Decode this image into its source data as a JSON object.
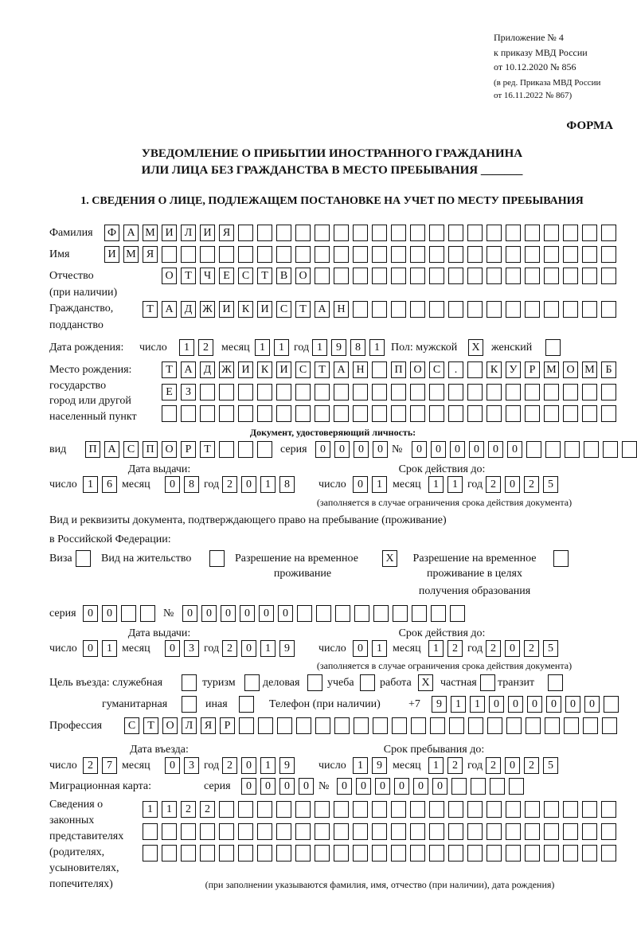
{
  "header": {
    "appendix": "Приложение № 4",
    "order": "к приказу МВД России",
    "order_date": "от 10.12.2020 № 856",
    "revision1": "(в ред. Приказа МВД России",
    "revision2": "от 16.11.2022 № 867)",
    "form_label": "ФОРМА",
    "title1": "УВЕДОМЛЕНИЕ О ПРИБЫТИИ ИНОСТРАННОГО ГРАЖДАНИНА",
    "title2": "ИЛИ ЛИЦА БЕЗ ГРАЖДАНСТВА В МЕСТО ПРЕБЫВАНИЯ _______",
    "section1": "1. СВЕДЕНИЯ О ЛИЦЕ, ПОДЛЕЖАЩЕМ ПОСТАНОВКЕ НА УЧЕТ ПО МЕСТУ ПРЕБЫВАНИЯ"
  },
  "labels": {
    "surname": "Фамилия",
    "name": "Имя",
    "patronymic1": "Отчество",
    "patronymic2": "(при наличии)",
    "citizenship1": "Гражданство,",
    "citizenship2": "подданство",
    "birth_date": "Дата рождения:",
    "day": "число",
    "month": "месяц",
    "year": "год",
    "sex": "Пол: мужской",
    "female": "женский",
    "birthplace1": "Место рождения:",
    "birthplace2": "государство",
    "birthplace3": "город или другой",
    "birthplace4": "населенный пункт",
    "id_doc": "Документ, удостоверяющий личность:",
    "kind": "вид",
    "series": "серия",
    "number": "№",
    "issue_date": "Дата выдачи:",
    "valid_until": "Срок действия до:",
    "validity_note": "(заполняется в случае ограничения срока действия документа)",
    "stay_doc1": "Вид и реквизиты документа, подтверждающего право на пребывание (проживание)",
    "stay_doc2": "в Российской Федерации:",
    "visa": "Виза",
    "residence": "Вид на жительство",
    "trp1": "Разрешение на временное",
    "trp2": "проживание",
    "trp_edu1": "Разрешение на временное",
    "trp_edu2": "проживание в целях",
    "trp_edu3": "получения образования",
    "purpose": "Цель въезда: служебная",
    "tourism": "туризм",
    "business": "деловая",
    "study": "учеба",
    "work": "работа",
    "private": "частная",
    "transit": "транзит",
    "humanitarian": "гуманитарная",
    "other": "иная",
    "phone": "Телефон (при наличии)",
    "phone_prefix": "+7",
    "profession": "Профессия",
    "entry_date": "Дата въезда:",
    "stay_until": "Срок пребывания до:",
    "migration_card": "Миграционная карта:",
    "reps1": "Сведения о",
    "reps2": "законных",
    "reps3": "представителях",
    "reps4": "(родителях,",
    "reps5": "усыновителях,",
    "reps6": "попечителях)",
    "reps_note": "(при заполнении указываются фамилия, имя, отчество (при наличии), дата рождения)"
  },
  "fields": {
    "surname": [
      "Ф",
      "А",
      "М",
      "И",
      "Л",
      "И",
      "Я",
      "",
      "",
      "",
      "",
      "",
      "",
      "",
      "",
      "",
      "",
      "",
      "",
      "",
      "",
      "",
      "",
      "",
      "",
      "",
      ""
    ],
    "name": [
      "И",
      "М",
      "Я",
      "",
      "",
      "",
      "",
      "",
      "",
      "",
      "",
      "",
      "",
      "",
      "",
      "",
      "",
      "",
      "",
      "",
      "",
      "",
      "",
      "",
      "",
      "",
      ""
    ],
    "patronymic": [
      "О",
      "Т",
      "Ч",
      "Е",
      "С",
      "Т",
      "В",
      "О",
      "",
      "",
      "",
      "",
      "",
      "",
      "",
      "",
      "",
      "",
      "",
      "",
      "",
      "",
      "",
      ""
    ],
    "citizenship": [
      "Т",
      "А",
      "Д",
      "Ж",
      "И",
      "К",
      "И",
      "С",
      "Т",
      "А",
      "Н",
      "",
      "",
      "",
      "",
      "",
      "",
      "",
      "",
      "",
      "",
      "",
      "",
      "",
      ""
    ],
    "birth_day": [
      "1",
      "2"
    ],
    "birth_month": [
      "1",
      "1"
    ],
    "birth_year": [
      "1",
      "9",
      "8",
      "1"
    ],
    "sex_male": "X",
    "sex_female": "",
    "birthplace_1": [
      "Т",
      "А",
      "Д",
      "Ж",
      "И",
      "К",
      "И",
      "С",
      "Т",
      "А",
      "Н",
      "",
      "П",
      "О",
      "С",
      ".",
      "",
      "К",
      "У",
      "Р",
      "М",
      "О",
      "М",
      "Б"
    ],
    "birthplace_2": [
      "Е",
      "З",
      "",
      "",
      "",
      "",
      "",
      "",
      "",
      "",
      "",
      "",
      "",
      "",
      "",
      "",
      "",
      "",
      "",
      "",
      "",
      "",
      "",
      ""
    ],
    "birthplace_3": [
      "",
      "",
      "",
      "",
      "",
      "",
      "",
      "",
      "",
      "",
      "",
      "",
      "",
      "",
      "",
      "",
      "",
      "",
      "",
      "",
      "",
      "",
      "",
      ""
    ],
    "id_kind": [
      "П",
      "А",
      "С",
      "П",
      "О",
      "Р",
      "Т",
      "",
      "",
      ""
    ],
    "id_series": [
      "0",
      "0",
      "0",
      "0"
    ],
    "id_number": [
      "0",
      "0",
      "0",
      "0",
      "0",
      "0",
      "",
      "",
      "",
      "",
      "",
      ""
    ],
    "id_issue_day": [
      "1",
      "6"
    ],
    "id_issue_month": [
      "0",
      "8"
    ],
    "id_issue_year": [
      "2",
      "0",
      "1",
      "8"
    ],
    "id_valid_day": [
      "0",
      "1"
    ],
    "id_valid_month": [
      "1",
      "1"
    ],
    "id_valid_year": [
      "2",
      "0",
      "2",
      "5"
    ],
    "stay_visa": "",
    "stay_residence": "",
    "stay_trp": "X",
    "stay_trp_edu": "",
    "stay_series": [
      "0",
      "0",
      "",
      ""
    ],
    "stay_number": [
      "0",
      "0",
      "0",
      "0",
      "0",
      "0",
      "",
      "",
      "",
      "",
      "",
      "",
      "",
      "",
      ""
    ],
    "stay_issue_day": [
      "0",
      "1"
    ],
    "stay_issue_month": [
      "0",
      "3"
    ],
    "stay_issue_year": [
      "2",
      "0",
      "1",
      "9"
    ],
    "stay_valid_day": [
      "0",
      "1"
    ],
    "stay_valid_month": [
      "1",
      "2"
    ],
    "stay_valid_year": [
      "2",
      "0",
      "2",
      "5"
    ],
    "purpose_official": "",
    "purpose_tourism": "",
    "purpose_business": "",
    "purpose_study": "",
    "purpose_work": "X",
    "purpose_private": "",
    "purpose_transit": "",
    "purpose_humanitarian": "",
    "purpose_other": "",
    "phone": [
      "9",
      "1",
      "1",
      "0",
      "0",
      "0",
      "0",
      "0",
      "0",
      ""
    ],
    "profession": [
      "С",
      "Т",
      "О",
      "Л",
      "Я",
      "Р",
      "",
      "",
      "",
      "",
      "",
      "",
      "",
      "",
      "",
      "",
      "",
      "",
      "",
      "",
      "",
      "",
      "",
      "",
      "",
      ""
    ],
    "entry_day": [
      "2",
      "7"
    ],
    "entry_month": [
      "0",
      "3"
    ],
    "entry_year": [
      "2",
      "0",
      "1",
      "9"
    ],
    "stay_until_day": [
      "1",
      "9"
    ],
    "stay_until_month": [
      "1",
      "2"
    ],
    "stay_until_year": [
      "2",
      "0",
      "2",
      "5"
    ],
    "mig_series": [
      "0",
      "0",
      "0",
      "0"
    ],
    "mig_number": [
      "0",
      "0",
      "0",
      "0",
      "0",
      "0",
      "",
      "",
      "",
      ""
    ],
    "reps_1": [
      "1",
      "1",
      "2",
      "2",
      "",
      "",
      "",
      "",
      "",
      "",
      "",
      "",
      "",
      "",
      "",
      "",
      "",
      "",
      "",
      "",
      "",
      "",
      "",
      "",
      ""
    ],
    "reps_2": [
      "",
      "",
      "",
      "",
      "",
      "",
      "",
      "",
      "",
      "",
      "",
      "",
      "",
      "",
      "",
      "",
      "",
      "",
      "",
      "",
      "",
      "",
      "",
      "",
      ""
    ],
    "reps_3": [
      "",
      "",
      "",
      "",
      "",
      "",
      "",
      "",
      "",
      "",
      "",
      "",
      "",
      "",
      "",
      "",
      "",
      "",
      "",
      "",
      "",
      "",
      "",
      "",
      ""
    ]
  }
}
